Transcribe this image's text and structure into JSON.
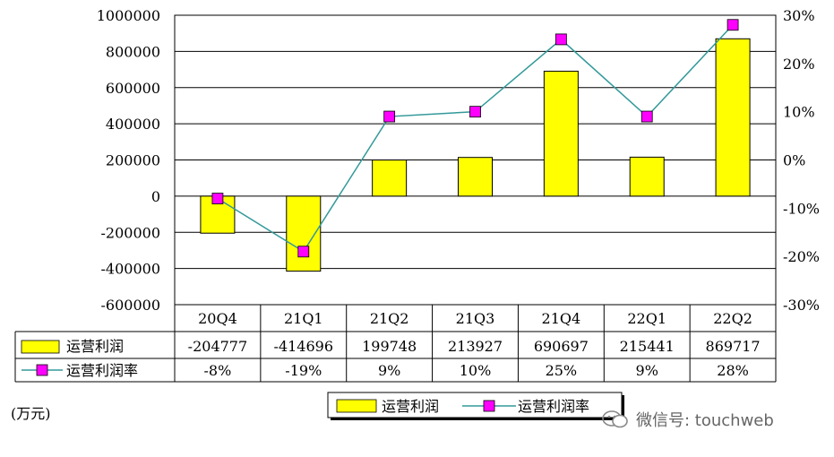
{
  "chart_data": {
    "type": "bar+line",
    "categories": [
      "20Q4",
      "21Q1",
      "21Q2",
      "21Q3",
      "21Q4",
      "22Q1",
      "22Q2"
    ],
    "series": [
      {
        "name": "运营利润",
        "kind": "bar",
        "axis": "left",
        "color": "#ffff00",
        "values": [
          -204777,
          -414696,
          199748,
          213927,
          690697,
          215441,
          869717
        ],
        "labels": [
          "-204777",
          "-414696",
          "199748",
          "213927",
          "690697",
          "215441",
          "869717"
        ]
      },
      {
        "name": "运营利润率",
        "kind": "line",
        "axis": "right",
        "color": "#ff00ff",
        "line_color": "#339999",
        "values": [
          -8,
          -19,
          9,
          10,
          25,
          9,
          28
        ],
        "labels": [
          "-8%",
          "-19%",
          "9%",
          "10%",
          "25%",
          "9%",
          "28%"
        ]
      }
    ],
    "left_axis": {
      "min": -600000,
      "max": 1000000,
      "step": 200000,
      "ticks": [
        "1000000",
        "800000",
        "600000",
        "400000",
        "200000",
        "0",
        "-200000",
        "-400000",
        "-600000"
      ]
    },
    "right_axis": {
      "min": -30,
      "max": 30,
      "step": 10,
      "ticks": [
        "30%",
        "20%",
        "10%",
        "0%",
        "-10%",
        "-20%",
        "-30%"
      ]
    },
    "unit_label": "(万元)",
    "grid": true,
    "legend_position": "bottom-center",
    "data_table": true
  },
  "watermark": {
    "text": "微信号: touchweb",
    "icon": "wechat-icon"
  }
}
